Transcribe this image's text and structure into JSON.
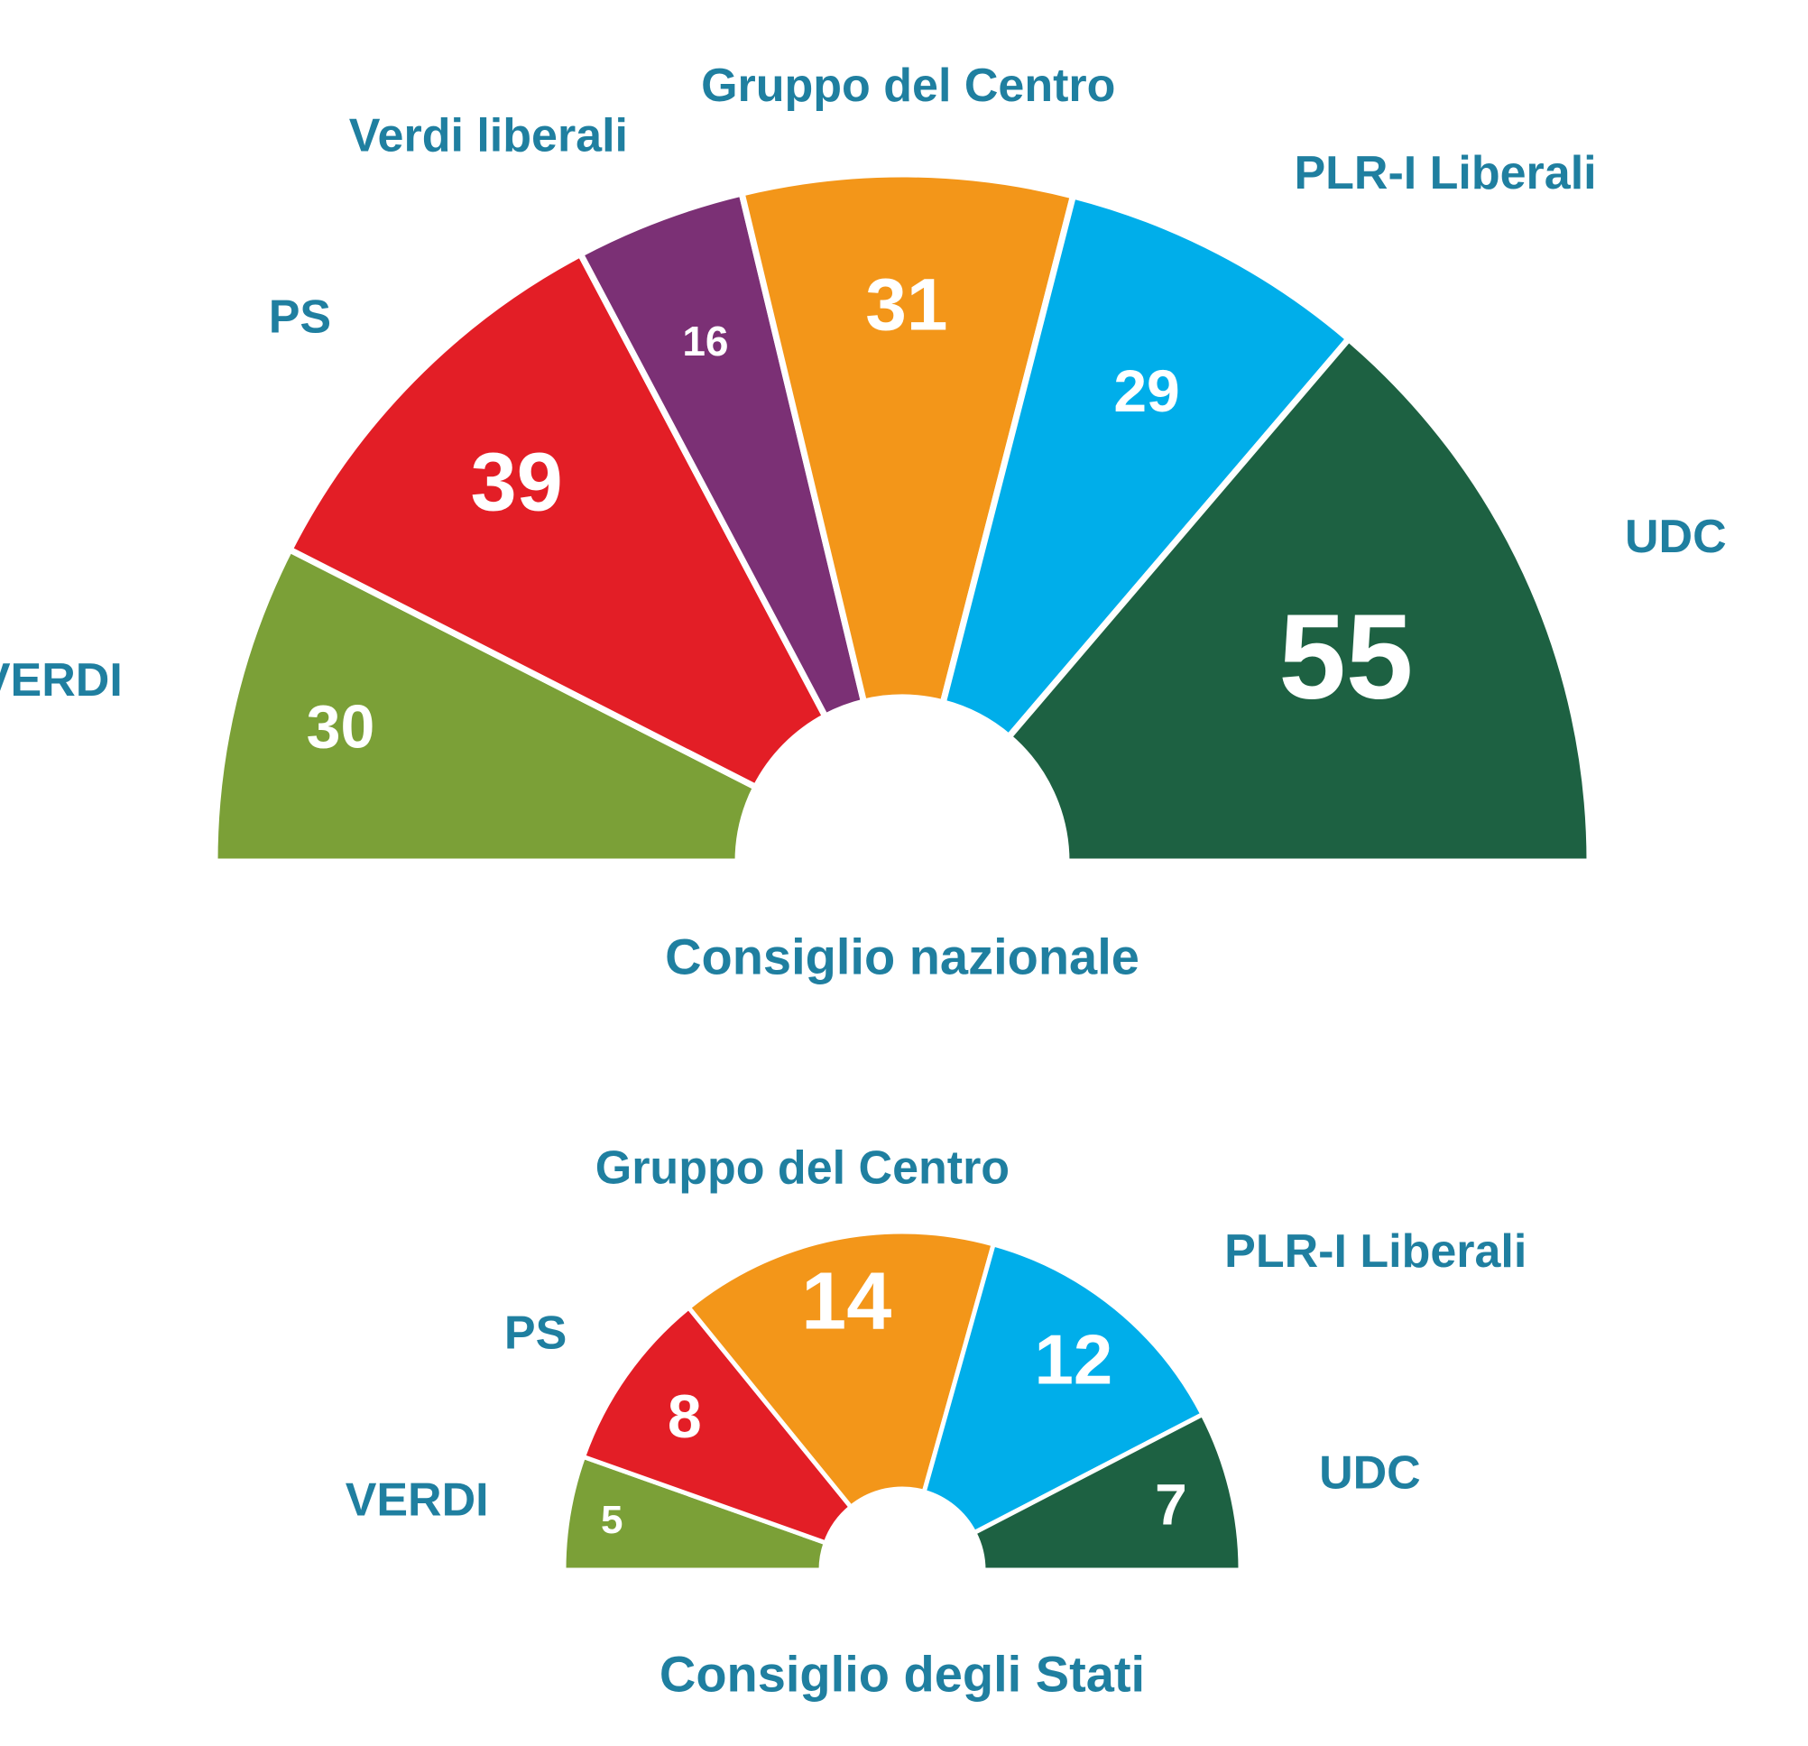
{
  "chart_data": [
    {
      "type": "pie",
      "variant": "semicircle",
      "title": "Consiglio nazionale",
      "categories": [
        "VERDI",
        "PS",
        "Verdi liberali",
        "Gruppo del Centro",
        "PLR-I Liberali",
        "UDC"
      ],
      "values": [
        30,
        39,
        16,
        31,
        29,
        55
      ],
      "colors": [
        "#7ba037",
        "#e31e26",
        "#7b3075",
        "#f39619",
        "#00aeea",
        "#1d6142"
      ]
    },
    {
      "type": "pie",
      "variant": "semicircle",
      "title": "Consiglio degli Stati",
      "categories": [
        "VERDI",
        "PS",
        "Gruppo del Centro",
        "PLR-I Liberali",
        "UDC"
      ],
      "values": [
        5,
        8,
        14,
        12,
        7
      ],
      "colors": [
        "#7ba037",
        "#e31e26",
        "#f39619",
        "#00aeea",
        "#1d6142"
      ]
    }
  ],
  "colors": {
    "label_text": "#1f7fa0",
    "value_text": "#ffffff",
    "background": "#ffffff"
  }
}
